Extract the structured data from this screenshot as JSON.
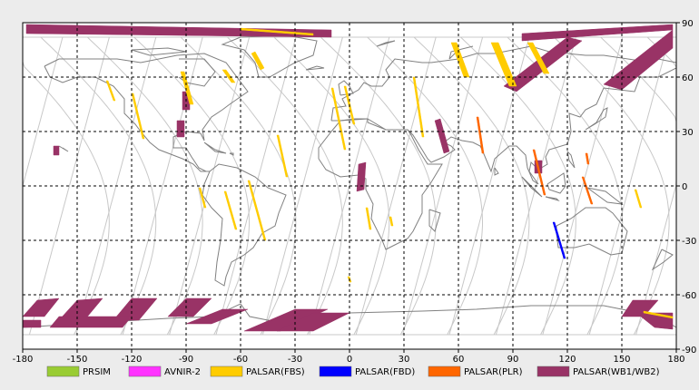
{
  "map": {
    "lon_range": [
      -180,
      180
    ],
    "lat_range": [
      -90,
      90
    ],
    "x_ticks": [
      "-180",
      "-150",
      "-120",
      "-90",
      "-60",
      "-30",
      "0",
      "30",
      "60",
      "90",
      "120",
      "150",
      "180"
    ],
    "y_ticks": [
      "90",
      "60",
      "30",
      "0",
      "-30",
      "-60",
      "-90"
    ],
    "grid": "dashed",
    "background_color": "#ffffff",
    "coast_color": "#808080",
    "orbit_color": "#c8c8c8",
    "frame_color": "#000000"
  },
  "legend": {
    "items": [
      {
        "label": "PRSIM",
        "color": "#99cc33"
      },
      {
        "label": "AVNIR-2",
        "color": "#ff33ff"
      },
      {
        "label": "PALSAR(FBS)",
        "color": "#ffcc00"
      },
      {
        "label": "PALSAR(FBD)",
        "color": "#0000ff"
      },
      {
        "label": "PALSAR(PLR)",
        "color": "#ff6600"
      },
      {
        "label": "PALSAR(WB1/WB2)",
        "color": "#993366"
      }
    ]
  },
  "swaths": [
    {
      "mode": "PALSAR(WB1/WB2)",
      "color": "#993366",
      "points": [
        [
          -178,
          89
        ],
        [
          -10,
          86
        ],
        [
          -10,
          82
        ],
        [
          -178,
          84
        ]
      ]
    },
    {
      "mode": "PALSAR(WB1/WB2)",
      "color": "#993366",
      "points": [
        [
          95,
          84
        ],
        [
          178,
          89
        ],
        [
          178,
          86
        ],
        [
          95,
          80
        ]
      ]
    },
    {
      "mode": "PALSAR(WB1/WB2)",
      "color": "#993366",
      "points": [
        [
          120,
          82
        ],
        [
          128,
          80
        ],
        [
          92,
          52
        ],
        [
          85,
          55
        ]
      ]
    },
    {
      "mode": "PALSAR(WB1/WB2)",
      "color": "#993366",
      "points": [
        [
          178,
          86
        ],
        [
          178,
          76
        ],
        [
          150,
          53
        ],
        [
          140,
          56
        ]
      ]
    },
    {
      "mode": "PALSAR(WB1/WB2)",
      "color": "#993366",
      "points": [
        [
          -92,
          52
        ],
        [
          -88,
          52
        ],
        [
          -88,
          42
        ],
        [
          -92,
          42
        ]
      ]
    },
    {
      "mode": "PALSAR(WB1/WB2)",
      "color": "#993366",
      "points": [
        [
          -95,
          36
        ],
        [
          -91,
          36
        ],
        [
          -91,
          27
        ],
        [
          -95,
          27
        ]
      ]
    },
    {
      "mode": "PALSAR(WB1/WB2)",
      "color": "#993366",
      "points": [
        [
          -163,
          22
        ],
        [
          -160,
          22
        ],
        [
          -160,
          17
        ],
        [
          -163,
          17
        ]
      ]
    },
    {
      "mode": "PALSAR(WB1/WB2)",
      "color": "#993366",
      "points": [
        [
          5,
          12
        ],
        [
          9,
          13
        ],
        [
          8,
          -2
        ],
        [
          4,
          -3
        ]
      ]
    },
    {
      "mode": "PALSAR(WB1/WB2)",
      "color": "#993366",
      "points": [
        [
          47,
          36
        ],
        [
          50,
          37
        ],
        [
          55,
          19
        ],
        [
          52,
          18
        ]
      ]
    },
    {
      "mode": "PALSAR(WB1/WB2)",
      "color": "#993366",
      "points": [
        [
          102,
          14
        ],
        [
          106,
          14
        ],
        [
          106,
          7
        ],
        [
          102,
          7
        ]
      ]
    },
    {
      "mode": "PALSAR(WB1/WB2)",
      "color": "#993366",
      "points": [
        [
          -172,
          -63
        ],
        [
          -160,
          -62
        ],
        [
          -168,
          -72
        ],
        [
          -180,
          -72
        ]
      ]
    },
    {
      "mode": "PALSAR(WB1/WB2)",
      "color": "#993366",
      "points": [
        [
          -150,
          -63
        ],
        [
          -136,
          -62
        ],
        [
          -146,
          -74
        ],
        [
          -160,
          -74
        ]
      ]
    },
    {
      "mode": "PALSAR(WB1/WB2)",
      "color": "#993366",
      "points": [
        [
          -120,
          -62
        ],
        [
          -106,
          -62
        ],
        [
          -116,
          -74
        ],
        [
          -130,
          -74
        ]
      ]
    },
    {
      "mode": "PALSAR(WB1/WB2)",
      "color": "#993366",
      "points": [
        [
          -90,
          -62
        ],
        [
          -76,
          -62
        ],
        [
          -86,
          -72
        ],
        [
          -100,
          -72
        ]
      ]
    },
    {
      "mode": "PALSAR(WB1/WB2)",
      "color": "#993366",
      "points": [
        [
          -70,
          -68
        ],
        [
          -56,
          -68
        ],
        [
          -76,
          -76
        ],
        [
          -90,
          -76
        ]
      ]
    },
    {
      "mode": "PALSAR(WB1/WB2)",
      "color": "#993366",
      "points": [
        [
          -160,
          -72
        ],
        [
          -120,
          -72
        ],
        [
          -125,
          -78
        ],
        [
          -165,
          -78
        ]
      ]
    },
    {
      "mode": "PALSAR(WB1/WB2)",
      "color": "#993366",
      "points": [
        [
          -180,
          -74
        ],
        [
          -170,
          -74
        ],
        [
          -170,
          -78
        ],
        [
          -180,
          -78
        ]
      ]
    },
    {
      "mode": "PALSAR(WB1/WB2)",
      "color": "#993366",
      "points": [
        [
          -30,
          -68
        ],
        [
          -12,
          -68
        ],
        [
          -38,
          -80
        ],
        [
          -58,
          -80
        ]
      ]
    },
    {
      "mode": "PALSAR(WB1/WB2)",
      "color": "#993366",
      "points": [
        [
          -20,
          -70
        ],
        [
          0,
          -70
        ],
        [
          -20,
          -80
        ],
        [
          -40,
          -80
        ]
      ]
    },
    {
      "mode": "PALSAR(WB1/WB2)",
      "color": "#993366",
      "points": [
        [
          156,
          -63
        ],
        [
          170,
          -63
        ],
        [
          162,
          -72
        ],
        [
          150,
          -72
        ]
      ]
    },
    {
      "mode": "PALSAR(WB1/WB2)",
      "color": "#993366",
      "points": [
        [
          158,
          -70
        ],
        [
          178,
          -70
        ],
        [
          178,
          -79
        ],
        [
          168,
          -78
        ]
      ]
    },
    {
      "mode": "PALSAR(FBS)",
      "color": "#ffcc00",
      "points": [
        [
          -60,
          87
        ],
        [
          -20,
          84
        ],
        [
          -20,
          83
        ],
        [
          -60,
          86
        ]
      ]
    },
    {
      "mode": "PALSAR(FBS)",
      "color": "#ffcc00",
      "points": [
        [
          -54,
          73
        ],
        [
          -52,
          74
        ],
        [
          -47,
          65
        ],
        [
          -49,
          64
        ]
      ]
    },
    {
      "mode": "PALSAR(FBS)",
      "color": "#ffcc00",
      "points": [
        [
          -70,
          64
        ],
        [
          -68,
          64
        ],
        [
          -63,
          57
        ],
        [
          -65,
          57
        ]
      ]
    },
    {
      "mode": "PALSAR(FBS)",
      "color": "#ffcc00",
      "points": [
        [
          -93,
          63
        ],
        [
          -91,
          63
        ],
        [
          -86,
          45
        ],
        [
          -88,
          45
        ]
      ]
    },
    {
      "mode": "PALSAR(FBS)",
      "color": "#ffcc00",
      "points": [
        [
          -120,
          51
        ],
        [
          -119,
          51
        ],
        [
          -113,
          26
        ],
        [
          -114,
          26
        ]
      ]
    },
    {
      "mode": "PALSAR(FBS)",
      "color": "#ffcc00",
      "points": [
        [
          -134,
          58
        ],
        [
          -133,
          58
        ],
        [
          -129,
          47
        ],
        [
          -130,
          47
        ]
      ]
    },
    {
      "mode": "PALSAR(FBS)",
      "color": "#ffcc00",
      "points": [
        [
          -83,
          -1
        ],
        [
          -82,
          -1
        ],
        [
          -79,
          -12
        ],
        [
          -80,
          -12
        ]
      ]
    },
    {
      "mode": "PALSAR(FBS)",
      "color": "#ffcc00",
      "points": [
        [
          -69,
          -3
        ],
        [
          -68,
          -3
        ],
        [
          -62,
          -24
        ],
        [
          -63,
          -24
        ]
      ]
    },
    {
      "mode": "PALSAR(FBS)",
      "color": "#ffcc00",
      "points": [
        [
          -56,
          3
        ],
        [
          -55,
          3
        ],
        [
          -46,
          -30
        ],
        [
          -47,
          -30
        ]
      ]
    },
    {
      "mode": "PALSAR(FBS)",
      "color": "#ffcc00",
      "points": [
        [
          -40,
          28
        ],
        [
          -39,
          28
        ],
        [
          -34,
          5
        ],
        [
          -35,
          5
        ]
      ]
    },
    {
      "mode": "PALSAR(FBS)",
      "color": "#ffcc00",
      "points": [
        [
          -10,
          54
        ],
        [
          -9,
          54
        ],
        [
          -2,
          20
        ],
        [
          -3,
          20
        ]
      ]
    },
    {
      "mode": "PALSAR(FBS)",
      "color": "#ffcc00",
      "points": [
        [
          -3,
          55
        ],
        [
          -2,
          55
        ],
        [
          3,
          34
        ],
        [
          2,
          34
        ]
      ]
    },
    {
      "mode": "PALSAR(FBS)",
      "color": "#ffcc00",
      "points": [
        [
          -1,
          -50
        ],
        [
          0,
          -50
        ],
        [
          1,
          -53
        ],
        [
          0,
          -53
        ]
      ]
    },
    {
      "mode": "PALSAR(FBS)",
      "color": "#ffcc00",
      "points": [
        [
          9,
          -12
        ],
        [
          10,
          -12
        ],
        [
          12,
          -24
        ],
        [
          11,
          -24
        ]
      ]
    },
    {
      "mode": "PALSAR(FBS)",
      "color": "#ffcc00",
      "points": [
        [
          35,
          60
        ],
        [
          36,
          60
        ],
        [
          41,
          27
        ],
        [
          40,
          27
        ]
      ]
    },
    {
      "mode": "PALSAR(FBS)",
      "color": "#ffcc00",
      "points": [
        [
          22,
          -17
        ],
        [
          23,
          -17
        ],
        [
          24,
          -22
        ],
        [
          23,
          -22
        ]
      ]
    },
    {
      "mode": "PALSAR(FBS)",
      "color": "#ffcc00",
      "points": [
        [
          56,
          79
        ],
        [
          59,
          79
        ],
        [
          66,
          60
        ],
        [
          63,
          60
        ]
      ]
    },
    {
      "mode": "PALSAR(FBS)",
      "color": "#ffcc00",
      "points": [
        [
          78,
          79
        ],
        [
          82,
          79
        ],
        [
          92,
          55
        ],
        [
          88,
          55
        ]
      ]
    },
    {
      "mode": "PALSAR(FBS)",
      "color": "#ffcc00",
      "points": [
        [
          98,
          79
        ],
        [
          101,
          79
        ],
        [
          110,
          62
        ],
        [
          107,
          62
        ]
      ]
    },
    {
      "mode": "PALSAR(FBS)",
      "color": "#ffcc00",
      "points": [
        [
          157,
          -2
        ],
        [
          158,
          -2
        ],
        [
          161,
          -12
        ],
        [
          160,
          -12
        ]
      ]
    },
    {
      "mode": "PALSAR(FBS)",
      "color": "#ffcc00",
      "points": [
        [
          162,
          -69
        ],
        [
          178,
          -72
        ],
        [
          178,
          -73
        ],
        [
          162,
          -70
        ]
      ]
    },
    {
      "mode": "PALSAR(FBD)",
      "color": "#0000ff",
      "points": [
        [
          112,
          -20
        ],
        [
          113,
          -20
        ],
        [
          119,
          -40
        ],
        [
          118,
          -40
        ]
      ]
    },
    {
      "mode": "PALSAR(PLR)",
      "color": "#ff6600",
      "points": [
        [
          70,
          38
        ],
        [
          71,
          38
        ],
        [
          74,
          18
        ],
        [
          73,
          18
        ]
      ]
    },
    {
      "mode": "PALSAR(PLR)",
      "color": "#ff6600",
      "points": [
        [
          101,
          20
        ],
        [
          102,
          20
        ],
        [
          108,
          -5
        ],
        [
          107,
          -5
        ]
      ]
    },
    {
      "mode": "PALSAR(PLR)",
      "color": "#ff6600",
      "points": [
        [
          128,
          5
        ],
        [
          129,
          5
        ],
        [
          134,
          -10
        ],
        [
          133,
          -10
        ]
      ]
    },
    {
      "mode": "PALSAR(PLR)",
      "color": "#ff6600",
      "points": [
        [
          130,
          18
        ],
        [
          131,
          18
        ],
        [
          132,
          12
        ],
        [
          131,
          12
        ]
      ]
    }
  ]
}
